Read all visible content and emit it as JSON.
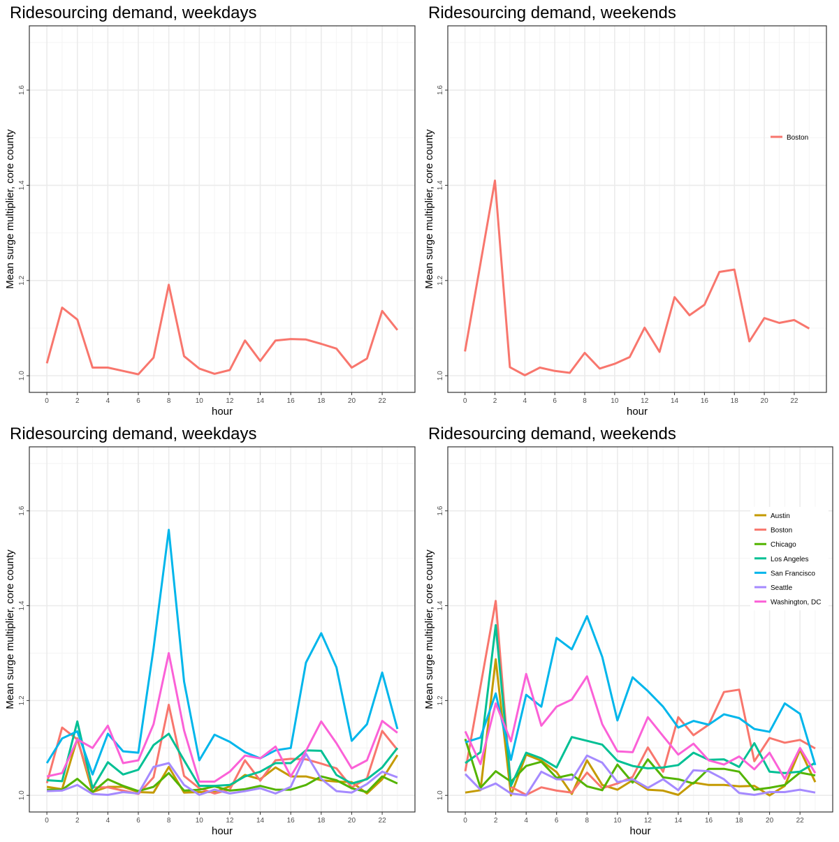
{
  "chart_data": [
    {
      "type": "line",
      "title": "Ridesourcing demand, weekdays",
      "xlabel": "hour",
      "ylabel": "Mean surge multiplier, core county",
      "xlim": [
        0,
        23
      ],
      "ylim": [
        1.0,
        1.7
      ],
      "xticks": [
        "0",
        "2",
        "4",
        "6",
        "8",
        "10",
        "12",
        "14",
        "16",
        "18",
        "20",
        "22"
      ],
      "yticks": [
        "1.0",
        "1.2",
        "1.4",
        "1.6"
      ],
      "grid": true,
      "legend": "none",
      "x": [
        0,
        1,
        2,
        3,
        4,
        5,
        6,
        7,
        8,
        9,
        10,
        11,
        12,
        13,
        14,
        15,
        16,
        17,
        18,
        19,
        20,
        21,
        22,
        23
      ],
      "series": [
        {
          "name": "Boston",
          "color": "#F8766D",
          "values": [
            1.026,
            1.143,
            1.118,
            1.017,
            1.017,
            1.01,
            1.003,
            1.038,
            1.191,
            1.041,
            1.015,
            1.004,
            1.012,
            1.074,
            1.031,
            1.074,
            1.077,
            1.076,
            1.067,
            1.057,
            1.017,
            1.036,
            1.136,
            1.096
          ]
        }
      ]
    },
    {
      "type": "line",
      "title": "Ridesourcing demand, weekends",
      "xlabel": "hour",
      "ylabel": "Mean surge multiplier, core county",
      "xlim": [
        0,
        23
      ],
      "ylim": [
        1.0,
        1.7
      ],
      "xticks": [
        "0",
        "2",
        "4",
        "6",
        "8",
        "10",
        "12",
        "14",
        "16",
        "18",
        "20",
        "22"
      ],
      "yticks": [
        "1.0",
        "1.2",
        "1.4",
        "1.6"
      ],
      "grid": true,
      "legend": "inside-right",
      "x": [
        0,
        1,
        2,
        3,
        4,
        5,
        6,
        7,
        8,
        9,
        10,
        11,
        12,
        13,
        14,
        15,
        16,
        17,
        18,
        19,
        20,
        21,
        22,
        23
      ],
      "series": [
        {
          "name": "Boston",
          "color": "#F8766D",
          "values": [
            1.051,
            1.23,
            1.41,
            1.018,
            1.001,
            1.017,
            1.01,
            1.006,
            1.048,
            1.015,
            1.025,
            1.039,
            1.101,
            1.05,
            1.165,
            1.127,
            1.149,
            1.218,
            1.223,
            1.072,
            1.121,
            1.111,
            1.117,
            1.099
          ]
        }
      ]
    },
    {
      "type": "line",
      "title": "Ridesourcing demand, weekdays",
      "xlabel": "hour",
      "ylabel": "Mean surge multiplier, core county",
      "xlim": [
        0,
        23
      ],
      "ylim": [
        1.0,
        1.7
      ],
      "xticks": [
        "0",
        "2",
        "4",
        "6",
        "8",
        "10",
        "12",
        "14",
        "16",
        "18",
        "20",
        "22"
      ],
      "yticks": [
        "1.0",
        "1.2",
        "1.4",
        "1.6"
      ],
      "grid": true,
      "legend": "none",
      "x": [
        0,
        1,
        2,
        3,
        4,
        5,
        6,
        7,
        8,
        9,
        10,
        11,
        12,
        13,
        14,
        15,
        16,
        17,
        18,
        19,
        20,
        21,
        22,
        23
      ],
      "series": [
        {
          "name": "Austin",
          "color": "#C49A00",
          "values": [
            1.018,
            1.013,
            1.12,
            1.007,
            1.018,
            1.018,
            1.007,
            1.006,
            1.06,
            1.006,
            1.007,
            1.007,
            1.019,
            1.043,
            1.034,
            1.059,
            1.04,
            1.04,
            1.032,
            1.029,
            1.028,
            1.004,
            1.034,
            1.085
          ]
        },
        {
          "name": "Boston",
          "color": "#F8766D",
          "values": [
            1.026,
            1.143,
            1.118,
            1.017,
            1.017,
            1.01,
            1.003,
            1.038,
            1.191,
            1.041,
            1.015,
            1.004,
            1.012,
            1.074,
            1.031,
            1.074,
            1.077,
            1.076,
            1.067,
            1.057,
            1.017,
            1.036,
            1.136,
            1.096
          ]
        },
        {
          "name": "Chicago",
          "color": "#53B400",
          "values": [
            1.012,
            1.012,
            1.035,
            1.007,
            1.034,
            1.02,
            1.009,
            1.018,
            1.047,
            1.01,
            1.012,
            1.019,
            1.01,
            1.013,
            1.02,
            1.012,
            1.012,
            1.022,
            1.04,
            1.032,
            1.015,
            1.007,
            1.04,
            1.025
          ]
        },
        {
          "name": "Los Angeles",
          "color": "#00C094",
          "values": [
            1.032,
            1.03,
            1.156,
            1.015,
            1.07,
            1.044,
            1.054,
            1.106,
            1.13,
            1.074,
            1.02,
            1.02,
            1.022,
            1.04,
            1.05,
            1.068,
            1.068,
            1.095,
            1.094,
            1.043,
            1.025,
            1.034,
            1.059,
            1.1
          ]
        },
        {
          "name": "San Francisco",
          "color": "#00B6EB",
          "values": [
            1.068,
            1.12,
            1.135,
            1.044,
            1.13,
            1.093,
            1.09,
            1.31,
            1.56,
            1.24,
            1.074,
            1.128,
            1.113,
            1.091,
            1.078,
            1.095,
            1.1,
            1.28,
            1.342,
            1.27,
            1.115,
            1.15,
            1.259,
            1.14
          ]
        },
        {
          "name": "Seattle",
          "color": "#A58AFF",
          "values": [
            1.009,
            1.01,
            1.022,
            1.003,
            1.001,
            1.007,
            1.004,
            1.06,
            1.068,
            1.022,
            1.001,
            1.012,
            1.004,
            1.009,
            1.015,
            1.004,
            1.018,
            1.088,
            1.035,
            1.009,
            1.006,
            1.024,
            1.05,
            1.038
          ]
        },
        {
          "name": "Washington, DC",
          "color": "#FB61D7",
          "values": [
            1.04,
            1.047,
            1.118,
            1.1,
            1.147,
            1.068,
            1.074,
            1.15,
            1.3,
            1.137,
            1.029,
            1.029,
            1.05,
            1.084,
            1.078,
            1.103,
            1.04,
            1.094,
            1.156,
            1.11,
            1.057,
            1.074,
            1.157,
            1.132
          ]
        }
      ]
    },
    {
      "type": "line",
      "title": "Ridesourcing demand, weekends",
      "xlabel": "hour",
      "ylabel": "Mean surge multiplier, core county",
      "xlim": [
        0,
        23
      ],
      "ylim": [
        1.0,
        1.7
      ],
      "xticks": [
        "0",
        "2",
        "4",
        "6",
        "8",
        "10",
        "12",
        "14",
        "16",
        "18",
        "20",
        "22"
      ],
      "yticks": [
        "1.0",
        "1.2",
        "1.4",
        "1.6"
      ],
      "grid": true,
      "legend": "inside-right",
      "x": [
        0,
        1,
        2,
        3,
        4,
        5,
        6,
        7,
        8,
        9,
        10,
        11,
        12,
        13,
        14,
        15,
        16,
        17,
        18,
        19,
        20,
        21,
        22,
        23
      ],
      "series": [
        {
          "name": "Austin",
          "color": "#C49A00",
          "values": [
            1.006,
            1.011,
            1.287,
            1.0,
            1.086,
            1.073,
            1.049,
            1.003,
            1.074,
            1.022,
            1.012,
            1.032,
            1.012,
            1.01,
            1.001,
            1.027,
            1.022,
            1.022,
            1.019,
            1.02,
            1.0,
            1.02,
            1.096,
            1.028
          ]
        },
        {
          "name": "Boston",
          "color": "#F8766D",
          "values": [
            1.051,
            1.23,
            1.41,
            1.018,
            1.001,
            1.017,
            1.01,
            1.006,
            1.048,
            1.015,
            1.025,
            1.039,
            1.101,
            1.05,
            1.165,
            1.127,
            1.149,
            1.218,
            1.223,
            1.072,
            1.121,
            1.111,
            1.117,
            1.099
          ]
        },
        {
          "name": "Chicago",
          "color": "#53B400",
          "values": [
            1.119,
            1.016,
            1.051,
            1.029,
            1.062,
            1.071,
            1.037,
            1.044,
            1.019,
            1.011,
            1.065,
            1.027,
            1.076,
            1.038,
            1.034,
            1.025,
            1.056,
            1.056,
            1.05,
            1.012,
            1.016,
            1.022,
            1.048,
            1.042
          ]
        },
        {
          "name": "Los Angeles",
          "color": "#00C094",
          "values": [
            1.068,
            1.091,
            1.359,
            1.02,
            1.09,
            1.078,
            1.059,
            1.123,
            1.115,
            1.107,
            1.073,
            1.062,
            1.057,
            1.059,
            1.064,
            1.09,
            1.075,
            1.076,
            1.06,
            1.11,
            1.05,
            1.047,
            1.05,
            1.069
          ]
        },
        {
          "name": "San Francisco",
          "color": "#00B6EB",
          "values": [
            1.112,
            1.122,
            1.215,
            1.075,
            1.212,
            1.187,
            1.332,
            1.308,
            1.378,
            1.292,
            1.158,
            1.249,
            1.22,
            1.187,
            1.143,
            1.157,
            1.149,
            1.171,
            1.163,
            1.14,
            1.134,
            1.194,
            1.172,
            1.064
          ]
        },
        {
          "name": "Seattle",
          "color": "#A58AFF",
          "values": [
            1.045,
            1.012,
            1.025,
            1.004,
            1.0,
            1.05,
            1.034,
            1.033,
            1.084,
            1.069,
            1.028,
            1.034,
            1.016,
            1.034,
            1.011,
            1.053,
            1.051,
            1.034,
            1.005,
            1.001,
            1.007,
            1.007,
            1.012,
            1.006
          ]
        },
        {
          "name": "Washington, DC",
          "color": "#FB61D7",
          "values": [
            1.135,
            1.066,
            1.194,
            1.114,
            1.256,
            1.147,
            1.187,
            1.202,
            1.251,
            1.15,
            1.093,
            1.091,
            1.165,
            1.125,
            1.086,
            1.109,
            1.074,
            1.065,
            1.082,
            1.055,
            1.09,
            1.035,
            1.1,
            1.047
          ]
        }
      ]
    }
  ]
}
